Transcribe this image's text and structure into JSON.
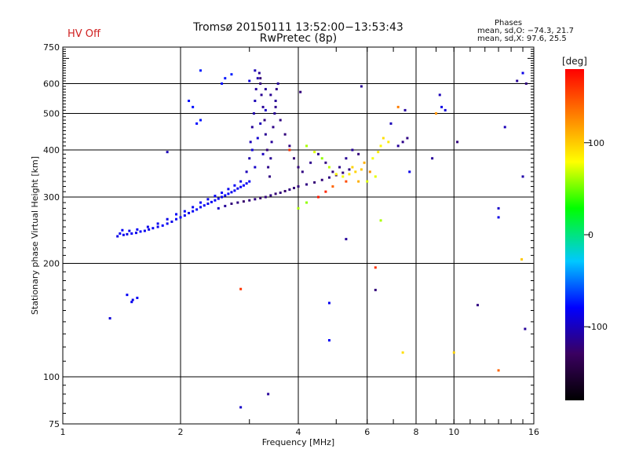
{
  "status": {
    "hv_label": "HV Off"
  },
  "chart_data": {
    "type": "scatter",
    "title": "Tromsø 20150111 13:52:00−13:53:43",
    "subtitle": "RwPretec (8p)",
    "xlabel": "Frequency [MHz]",
    "ylabel": "Stationary phase Virtual Height [km]",
    "x_scale": "log",
    "y_scale": "log",
    "xlim": [
      1,
      16
    ],
    "ylim": [
      75,
      750
    ],
    "x_major_ticks": [
      1,
      2,
      4,
      6,
      8,
      10,
      16
    ],
    "y_major_ticks": [
      75,
      100,
      200,
      300,
      400,
      500,
      600,
      750
    ],
    "grid": true,
    "phases": {
      "heading": "Phases",
      "o_mode": "mean, sd,O: −74.3, 21.7",
      "x_mode": "mean, sd,X:  97.6, 25.5"
    },
    "colorbar": {
      "label": "[deg]",
      "range": [
        -180,
        180
      ],
      "ticks": [
        100,
        0,
        -100
      ],
      "colors": [
        "#000000",
        "#3a0060",
        "#0000ff",
        "#00c8ff",
        "#00ff00",
        "#ffff00",
        "#ff8000",
        "#ff0000"
      ]
    },
    "series": [
      {
        "points": [
          [
            1.38,
            236,
            -85
          ],
          [
            1.4,
            240,
            -80
          ],
          [
            1.43,
            238,
            -82
          ],
          [
            1.46,
            239,
            -85
          ],
          [
            1.5,
            240,
            -80
          ],
          [
            1.54,
            241,
            -84
          ],
          [
            1.58,
            243,
            -78
          ],
          [
            1.62,
            244,
            -82
          ],
          [
            1.66,
            246,
            -85
          ],
          [
            1.7,
            248,
            -80
          ],
          [
            1.75,
            250,
            -83
          ],
          [
            1.8,
            252,
            -78
          ],
          [
            1.85,
            255,
            -82
          ],
          [
            1.9,
            258,
            -84
          ],
          [
            1.95,
            262,
            -80
          ],
          [
            2.0,
            265,
            -78
          ],
          [
            2.05,
            268,
            -82
          ],
          [
            2.1,
            272,
            -85
          ],
          [
            2.15,
            275,
            -80
          ],
          [
            2.2,
            278,
            -76
          ],
          [
            2.25,
            282,
            -82
          ],
          [
            2.3,
            285,
            -80
          ],
          [
            2.35,
            288,
            -84
          ],
          [
            2.4,
            291,
            -80
          ],
          [
            2.45,
            294,
            -78
          ],
          [
            2.5,
            297,
            -82
          ],
          [
            2.55,
            300,
            -85
          ],
          [
            2.6,
            303,
            -80
          ],
          [
            2.65,
            306,
            -78
          ],
          [
            2.7,
            309,
            -82
          ],
          [
            2.75,
            312,
            -80
          ],
          [
            2.8,
            316,
            -84
          ],
          [
            2.85,
            319,
            -80
          ],
          [
            2.9,
            322,
            -78
          ],
          [
            2.95,
            326,
            -82
          ],
          [
            3.0,
            330,
            -80
          ],
          [
            1.42,
            245,
            -80
          ],
          [
            1.48,
            244,
            -82
          ],
          [
            1.55,
            246,
            -80
          ],
          [
            1.65,
            250,
            -84
          ],
          [
            1.75,
            255,
            -82
          ],
          [
            1.85,
            262,
            -85
          ],
          [
            1.95,
            270,
            -80
          ],
          [
            2.05,
            275,
            -78
          ],
          [
            2.15,
            282,
            -82
          ],
          [
            2.25,
            290,
            -80
          ],
          [
            2.35,
            296,
            -84
          ],
          [
            2.45,
            302,
            -80
          ],
          [
            2.55,
            308,
            -78
          ],
          [
            2.65,
            315,
            -82
          ],
          [
            2.75,
            322,
            -80
          ],
          [
            2.85,
            330,
            -85
          ],
          [
            2.5,
            280,
            -95
          ],
          [
            2.6,
            284,
            -110
          ],
          [
            2.7,
            288,
            -120
          ],
          [
            2.8,
            290,
            -118
          ],
          [
            2.9,
            292,
            -125
          ],
          [
            3.0,
            294,
            -120
          ],
          [
            3.1,
            296,
            -118
          ],
          [
            3.2,
            298,
            -124
          ],
          [
            3.3,
            300,
            -120
          ],
          [
            3.4,
            303,
            -118
          ],
          [
            3.5,
            306,
            -122
          ],
          [
            3.6,
            308,
            -120
          ],
          [
            3.7,
            311,
            -124
          ],
          [
            3.8,
            314,
            -118
          ],
          [
            3.9,
            317,
            -122
          ],
          [
            4.0,
            320,
            -120
          ],
          [
            4.2,
            324,
            -118
          ],
          [
            4.4,
            328,
            -122
          ],
          [
            4.6,
            333,
            -120
          ],
          [
            4.8,
            338,
            -118
          ],
          [
            5.0,
            343,
            -122
          ],
          [
            5.2,
            348,
            -120
          ],
          [
            5.4,
            355,
            -118
          ],
          [
            2.95,
            350,
            -100
          ],
          [
            3.0,
            380,
            -105
          ],
          [
            3.02,
            420,
            -100
          ],
          [
            3.05,
            460,
            -110
          ],
          [
            3.08,
            500,
            -105
          ],
          [
            3.1,
            540,
            -100
          ],
          [
            3.12,
            580,
            -108
          ],
          [
            3.15,
            620,
            -104
          ],
          [
            3.18,
            640,
            -110
          ],
          [
            3.2,
            600,
            -120
          ],
          [
            3.22,
            560,
            -112
          ],
          [
            3.25,
            520,
            -110
          ],
          [
            3.28,
            480,
            -118
          ],
          [
            3.3,
            440,
            -112
          ],
          [
            3.33,
            400,
            -120
          ],
          [
            3.35,
            360,
            -115
          ],
          [
            3.38,
            340,
            -118
          ],
          [
            3.4,
            380,
            -112
          ],
          [
            3.42,
            420,
            -110
          ],
          [
            3.45,
            460,
            -116
          ],
          [
            3.48,
            500,
            -112
          ],
          [
            3.5,
            540,
            -110
          ],
          [
            3.52,
            580,
            -116
          ],
          [
            3.55,
            600,
            -110
          ],
          [
            3.05,
            400,
            -90
          ],
          [
            3.1,
            360,
            -95
          ],
          [
            3.15,
            430,
            -92
          ],
          [
            3.2,
            470,
            -100
          ],
          [
            3.25,
            390,
            -98
          ],
          [
            3.3,
            510,
            -95
          ],
          [
            3.0,
            610,
            -88
          ],
          [
            3.1,
            650,
            -100
          ],
          [
            3.2,
            620,
            -122
          ],
          [
            3.3,
            580,
            -110
          ],
          [
            3.4,
            560,
            -112
          ],
          [
            3.5,
            520,
            -115
          ],
          [
            3.6,
            480,
            -118
          ],
          [
            3.7,
            440,
            -120
          ],
          [
            3.8,
            410,
            -118
          ],
          [
            3.9,
            380,
            -122
          ],
          [
            4.0,
            360,
            -120
          ],
          [
            4.1,
            350,
            -118
          ],
          [
            4.3,
            370,
            -115
          ],
          [
            4.5,
            390,
            -112
          ],
          [
            4.7,
            370,
            -118
          ],
          [
            4.9,
            350,
            -120
          ],
          [
            5.1,
            360,
            -115
          ],
          [
            5.3,
            380,
            -112
          ],
          [
            5.5,
            400,
            -110
          ],
          [
            5.7,
            390,
            -120
          ],
          [
            4.2,
            410,
            60
          ],
          [
            4.4,
            395,
            70
          ],
          [
            4.6,
            380,
            55
          ],
          [
            4.8,
            360,
            65
          ],
          [
            5.0,
            345,
            80
          ],
          [
            5.2,
            340,
            75
          ],
          [
            5.4,
            345,
            85
          ],
          [
            5.6,
            350,
            95
          ],
          [
            5.8,
            355,
            100
          ],
          [
            5.9,
            370,
            110
          ],
          [
            6.2,
            380,
            75
          ],
          [
            6.4,
            395,
            85
          ],
          [
            6.5,
            410,
            80
          ],
          [
            6.6,
            430,
            90
          ],
          [
            6.8,
            420,
            85
          ],
          [
            6.0,
            330,
            70
          ],
          [
            6.3,
            340,
            72
          ],
          [
            5.5,
            360,
            95
          ],
          [
            5.7,
            330,
            110
          ],
          [
            6.1,
            350,
            120
          ],
          [
            7.2,
            410,
            -110
          ],
          [
            7.4,
            420,
            -115
          ],
          [
            7.6,
            430,
            -118
          ],
          [
            8.8,
            380,
            -110
          ],
          [
            2.2,
            470,
            -75
          ],
          [
            2.25,
            480,
            -72
          ],
          [
            2.15,
            520,
            -74
          ],
          [
            2.1,
            540,
            -75
          ],
          [
            2.55,
            600,
            -74
          ],
          [
            2.6,
            620,
            -72
          ],
          [
            2.7,
            635,
            -70
          ],
          [
            4.5,
            300,
            170
          ],
          [
            4.7,
            310,
            165
          ],
          [
            3.8,
            400,
            160
          ],
          [
            4.9,
            320,
            140
          ],
          [
            5.3,
            330,
            150
          ],
          [
            4.0,
            280,
            60
          ],
          [
            4.2,
            290,
            55
          ],
          [
            1.32,
            143,
            -90
          ],
          [
            1.46,
            165,
            -80
          ],
          [
            1.51,
            160,
            -85
          ],
          [
            1.55,
            162,
            -80
          ],
          [
            1.5,
            158,
            -82
          ],
          [
            1.85,
            395,
            -100
          ],
          [
            2.25,
            650,
            -70
          ],
          [
            3.35,
            90,
            -110
          ],
          [
            2.85,
            83,
            -95
          ],
          [
            2.85,
            171,
            160
          ],
          [
            4.8,
            157,
            -82
          ],
          [
            4.8,
            125,
            -80
          ],
          [
            5.3,
            232,
            -110
          ],
          [
            6.3,
            170,
            -120
          ],
          [
            6.3,
            195,
            160
          ],
          [
            6.5,
            260,
            60
          ],
          [
            7.4,
            116,
            90
          ],
          [
            7.7,
            350,
            -85
          ],
          [
            10.0,
            116,
            95
          ],
          [
            10.2,
            420,
            -120
          ],
          [
            11.5,
            155,
            -118
          ],
          [
            13.0,
            104,
            140
          ],
          [
            13.0,
            280,
            -95
          ],
          [
            13.0,
            265,
            -85
          ],
          [
            13.5,
            460,
            -100
          ],
          [
            14.5,
            610,
            -110
          ],
          [
            15.0,
            640,
            -85
          ],
          [
            15.3,
            600,
            -120
          ],
          [
            15.0,
            340,
            -105
          ],
          [
            14.9,
            205,
            100
          ],
          [
            15.2,
            134,
            -110
          ],
          [
            9.5,
            510,
            -90
          ],
          [
            9.3,
            520,
            -85
          ],
          [
            9.0,
            500,
            120
          ],
          [
            9.2,
            560,
            -100
          ],
          [
            7.2,
            520,
            130
          ],
          [
            6.9,
            470,
            -100
          ],
          [
            5.8,
            590,
            -112
          ],
          [
            4.05,
            570,
            -120
          ],
          [
            7.5,
            510,
            -108
          ]
        ]
      }
    ]
  }
}
